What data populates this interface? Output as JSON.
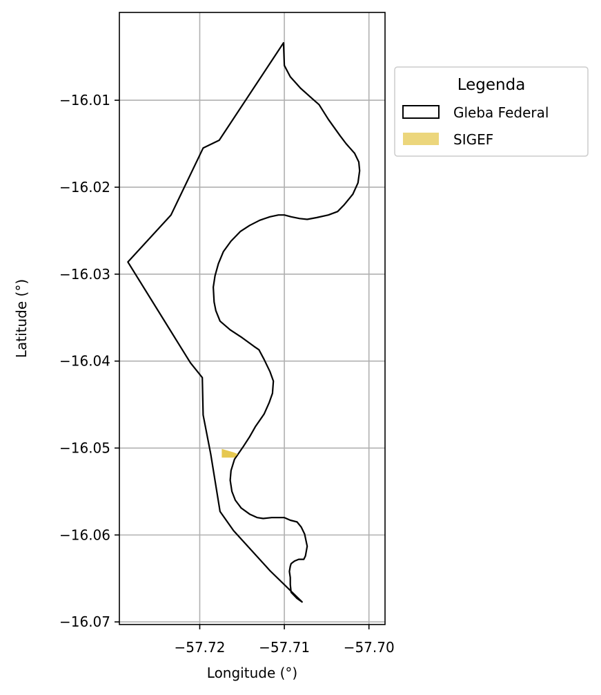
{
  "chart_data": {
    "type": "map",
    "xlabel": "Longitude (°)",
    "ylabel": "Latitude (°)",
    "xlim": [
      -57.7295,
      -57.6981
    ],
    "ylim": [
      -16.0703,
      -15.9999
    ],
    "xticks": [
      -57.72,
      -57.71,
      -57.7
    ],
    "xtick_labels": [
      "−57.72",
      "−57.71",
      "−57.70"
    ],
    "yticks": [
      -16.01,
      -16.02,
      -16.03,
      -16.04,
      -16.05,
      -16.06,
      -16.07
    ],
    "ytick_labels": [
      "−16.01",
      "−16.02",
      "−16.03",
      "−16.04",
      "−16.05",
      "−16.06",
      "−16.07"
    ],
    "grid": true,
    "legend": {
      "title": "Legenda",
      "position": "outside-upper-right",
      "entries": [
        {
          "label": "Gleba Federal",
          "style": "outline",
          "edge_color": "#000000",
          "fill": "none"
        },
        {
          "label": "SIGEF",
          "style": "fill",
          "fill": "#e6c850"
        }
      ]
    },
    "layers": [
      {
        "name": "Gleba Federal",
        "type": "polygon",
        "edge_color": "#000000",
        "fill": "none",
        "coordinates": [
          [
            -57.7101,
            -16.0034
          ],
          [
            -57.71,
            -16.006
          ],
          [
            -57.7093,
            -16.0073
          ],
          [
            -57.7081,
            -16.0086
          ],
          [
            -57.7066,
            -16.0099
          ],
          [
            -57.7059,
            -16.0105
          ],
          [
            -57.7048,
            -16.0122
          ],
          [
            -57.7034,
            -16.0141
          ],
          [
            -57.7027,
            -16.015
          ],
          [
            -57.7017,
            -16.0161
          ],
          [
            -57.7012,
            -16.0171
          ],
          [
            -57.7011,
            -16.0181
          ],
          [
            -57.7013,
            -16.0195
          ],
          [
            -57.7019,
            -16.0208
          ],
          [
            -57.7029,
            -16.022
          ],
          [
            -57.7037,
            -16.0228
          ],
          [
            -57.7048,
            -16.0232
          ],
          [
            -57.7062,
            -16.0235
          ],
          [
            -57.7073,
            -16.0237
          ],
          [
            -57.7082,
            -16.0236
          ],
          [
            -57.7092,
            -16.0234
          ],
          [
            -57.71,
            -16.0232
          ],
          [
            -57.7107,
            -16.0232
          ],
          [
            -57.7117,
            -16.0234
          ],
          [
            -57.7129,
            -16.0238
          ],
          [
            -57.7141,
            -16.0244
          ],
          [
            -57.7152,
            -16.0251
          ],
          [
            -57.7163,
            -16.0262
          ],
          [
            -57.7172,
            -16.0274
          ],
          [
            -57.7178,
            -16.0288
          ],
          [
            -57.7182,
            -16.0302
          ],
          [
            -57.7184,
            -16.0315
          ],
          [
            -57.7183,
            -16.0332
          ],
          [
            -57.7181,
            -16.0342
          ],
          [
            -57.7176,
            -16.0354
          ],
          [
            -57.7164,
            -16.0364
          ],
          [
            -57.715,
            -16.0373
          ],
          [
            -57.7136,
            -16.0383
          ],
          [
            -57.713,
            -16.0387
          ],
          [
            -57.7124,
            -16.0398
          ],
          [
            -57.7117,
            -16.0412
          ],
          [
            -57.7113,
            -16.0423
          ],
          [
            -57.7114,
            -16.0437
          ],
          [
            -57.7118,
            -16.0448
          ],
          [
            -57.7124,
            -16.0461
          ],
          [
            -57.7134,
            -16.0475
          ],
          [
            -57.7141,
            -16.0487
          ],
          [
            -57.7149,
            -16.0499
          ],
          [
            -57.7159,
            -16.0513
          ],
          [
            -57.7163,
            -16.0526
          ],
          [
            -57.7164,
            -16.0537
          ],
          [
            -57.7162,
            -16.055
          ],
          [
            -57.7158,
            -16.056
          ],
          [
            -57.7151,
            -16.0569
          ],
          [
            -57.7141,
            -16.0576
          ],
          [
            -57.7132,
            -16.058
          ],
          [
            -57.7125,
            -16.0581
          ],
          [
            -57.7115,
            -16.058
          ],
          [
            -57.7107,
            -16.058
          ],
          [
            -57.71,
            -16.058
          ],
          [
            -57.7093,
            -16.0583
          ],
          [
            -57.7085,
            -16.0585
          ],
          [
            -57.708,
            -16.0591
          ],
          [
            -57.7076,
            -16.0599
          ],
          [
            -57.7073,
            -16.0613
          ],
          [
            -57.7075,
            -16.0624
          ],
          [
            -57.7077,
            -16.0628
          ],
          [
            -57.7083,
            -16.0628
          ],
          [
            -57.7088,
            -16.063
          ],
          [
            -57.7092,
            -16.0633
          ],
          [
            -57.7093,
            -16.0636
          ],
          [
            -57.7094,
            -16.0642
          ],
          [
            -57.7093,
            -16.0649
          ],
          [
            -57.7093,
            -16.0657
          ],
          [
            -57.7092,
            -16.0666
          ],
          [
            -57.7085,
            -16.0673
          ],
          [
            -57.7079,
            -16.0677
          ],
          [
            -57.7117,
            -16.0641
          ],
          [
            -57.716,
            -16.0595
          ],
          [
            -57.7176,
            -16.0573
          ],
          [
            -57.7187,
            -16.0507
          ],
          [
            -57.7196,
            -16.0462
          ],
          [
            -57.7197,
            -16.0419
          ],
          [
            -57.7211,
            -16.0402
          ],
          [
            -57.7285,
            -16.0286
          ],
          [
            -57.7234,
            -16.0232
          ],
          [
            -57.7196,
            -16.0155
          ],
          [
            -57.7177,
            -16.0146
          ],
          [
            -57.7101,
            -16.0034
          ]
        ]
      },
      {
        "name": "SIGEF",
        "type": "polygon",
        "fill": "#e6c850",
        "coordinates": [
          [
            -57.7174,
            -16.0501
          ],
          [
            -57.7167,
            -16.0503
          ],
          [
            -57.716,
            -16.0505
          ],
          [
            -57.7155,
            -16.0507
          ],
          [
            -57.7159,
            -16.0511
          ],
          [
            -57.7174,
            -16.0511
          ]
        ]
      }
    ]
  }
}
